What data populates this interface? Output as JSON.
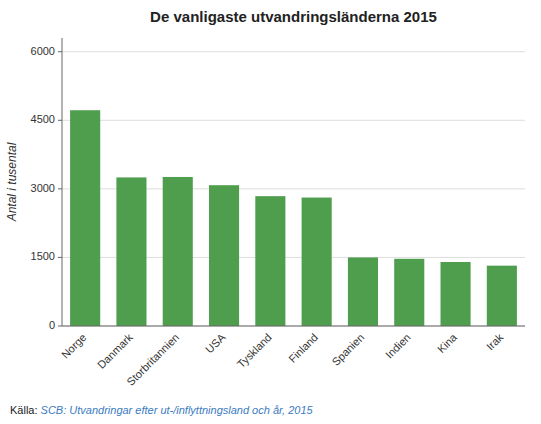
{
  "chart_data": {
    "type": "bar",
    "title": "De vanligaste utvandringsländerna 2015",
    "categories": [
      "Norge",
      "Danmark",
      "Storbritannien",
      "USA",
      "Tyskland",
      "Finland",
      "Spanien",
      "Indien",
      "Kina",
      "Irak"
    ],
    "values": [
      4720,
      3250,
      3260,
      3080,
      2840,
      2810,
      1500,
      1470,
      1400,
      1320
    ],
    "color": "#4e9e4e",
    "ylabel": "Antal i tusental",
    "ylim": [
      0,
      6300
    ],
    "yticks": [
      0,
      1500,
      3000,
      4500,
      6000
    ],
    "grid": true,
    "annotations": [
      "Källa: ",
      "SCB: Utvandringar efter ut-/inflyttningsland och år, 2015"
    ]
  }
}
